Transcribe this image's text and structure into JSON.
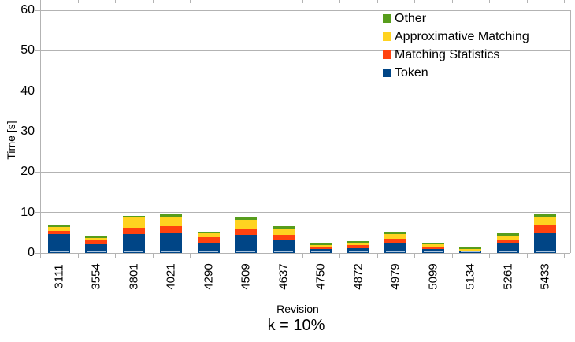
{
  "chart_data": {
    "type": "bar",
    "stacked": true,
    "caption": "k = 10%",
    "xlabel": "Revision",
    "ylabel": "Time [s]",
    "ylim": [
      0,
      60
    ],
    "yticks": [
      0,
      10,
      20,
      30,
      40,
      50,
      60
    ],
    "grid": true,
    "legend_position": "top-right-inside-transparent",
    "categories": [
      "3111",
      "3554",
      "3801",
      "4021",
      "4290",
      "4509",
      "4637",
      "4750",
      "4872",
      "4979",
      "5099",
      "5134",
      "5261",
      "5433"
    ],
    "series": [
      {
        "name": "Token",
        "key": "token",
        "color": "#004586",
        "values": [
          4.6,
          2.2,
          4.7,
          4.9,
          2.6,
          4.4,
          3.3,
          1.0,
          1.1,
          2.5,
          1.0,
          0.35,
          2.3,
          4.9
        ]
      },
      {
        "name": "Matching Statistics",
        "key": "matching-statistics",
        "color": "#FF420E",
        "values": [
          0.85,
          0.85,
          1.6,
          1.7,
          1.2,
          1.6,
          1.2,
          0.5,
          0.8,
          1.0,
          0.65,
          0.3,
          1.0,
          1.9
        ]
      },
      {
        "name": "Approximative Matching",
        "key": "approximative-matching",
        "color": "#FFD320",
        "values": [
          1.0,
          0.65,
          2.4,
          2.2,
          1.0,
          2.1,
          1.4,
          0.5,
          0.55,
          1.2,
          0.5,
          0.25,
          1.0,
          2.1
        ]
      },
      {
        "name": "Other",
        "key": "other",
        "color": "#579D1C",
        "values": [
          0.5,
          0.65,
          0.4,
          0.65,
          0.45,
          0.6,
          0.65,
          0.4,
          0.55,
          0.5,
          0.45,
          0.4,
          0.5,
          0.7
        ]
      }
    ],
    "legend": [
      {
        "label": "Other",
        "color": "#579D1C"
      },
      {
        "label": "Approximative Matching",
        "color": "#FFD320"
      },
      {
        "label": "Matching Statistics",
        "color": "#FF420E"
      },
      {
        "label": "Token",
        "color": "#004586"
      }
    ]
  },
  "colors": {
    "background": "#ffffff",
    "grid": "#b3b3b3",
    "axis": "#b3b3b3",
    "text": "#000000",
    "token_highlight": "#a9c4df"
  }
}
